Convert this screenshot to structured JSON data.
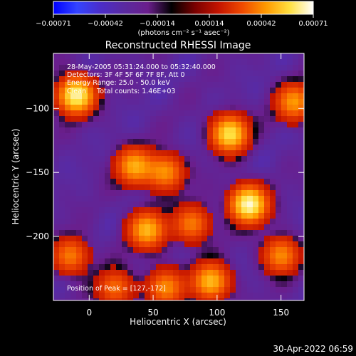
{
  "colorbar": {
    "ticks": [
      "-0.00071",
      "-0.00042",
      "-0.00014",
      "0.00014",
      "0.00042",
      "0.00071"
    ],
    "unit_label": "(photons cm⁻² s⁻¹ asec⁻²)"
  },
  "annotations": {
    "time_range": "28-May-2005 05:31:24.000 to 05:32:40.000",
    "detectors": "Detectors: 3F 4F 5F 6F 7F 8F, Att 0",
    "energy": "Energy Range: 25.0 - 50.0 keV",
    "method": "Clean     Total counts: 1.46E+03",
    "peak": "Position of Peak = [127,-172]"
  },
  "footer": {
    "timestamp": "30-Apr-2022 06:59"
  },
  "chart_data": {
    "type": "heatmap",
    "title": "Reconstructed RHESSI Image",
    "xlabel": "Heliocentric X (arcsec)",
    "ylabel": "Heliocentric Y (arcsec)",
    "xlim": [
      -28,
      168
    ],
    "ylim": [
      -250,
      -57
    ],
    "xticks": [
      0,
      50,
      100,
      150
    ],
    "xtick_labels": [
      "0",
      "50",
      "100",
      "150"
    ],
    "yticks": [
      -100,
      -150,
      -200
    ],
    "ytick_labels": [
      "−100",
      "−150",
      "−200"
    ],
    "color_range": [
      -0.00071,
      0.00071
    ],
    "colormap": [
      "#0000ff",
      "#3344ff",
      "#4b2dc8",
      "#5a2aa0",
      "#6a1e8c",
      "#000000",
      "#7a0000",
      "#c41400",
      "#f04a00",
      "#ff9a00",
      "#ffe040",
      "#ffffff"
    ],
    "peak": {
      "x": 127,
      "y": -172
    },
    "hotspots": [
      {
        "x": -10,
        "y": -90,
        "intensity": 0.95
      },
      {
        "x": 125,
        "y": -175,
        "intensity": 1.0
      },
      {
        "x": 110,
        "y": -120,
        "intensity": 0.85
      },
      {
        "x": 160,
        "y": -95,
        "intensity": 0.6
      },
      {
        "x": 35,
        "y": -145,
        "intensity": 0.65
      },
      {
        "x": 45,
        "y": -195,
        "intensity": 0.7
      },
      {
        "x": 60,
        "y": -150,
        "intensity": 0.55
      },
      {
        "x": 95,
        "y": -235,
        "intensity": 0.7
      },
      {
        "x": 150,
        "y": -215,
        "intensity": 0.55
      },
      {
        "x": 60,
        "y": -240,
        "intensity": 0.55
      },
      {
        "x": 80,
        "y": -190,
        "intensity": 0.5
      },
      {
        "x": -15,
        "y": -215,
        "intensity": 0.5
      },
      {
        "x": 20,
        "y": -240,
        "intensity": 0.45
      }
    ]
  }
}
